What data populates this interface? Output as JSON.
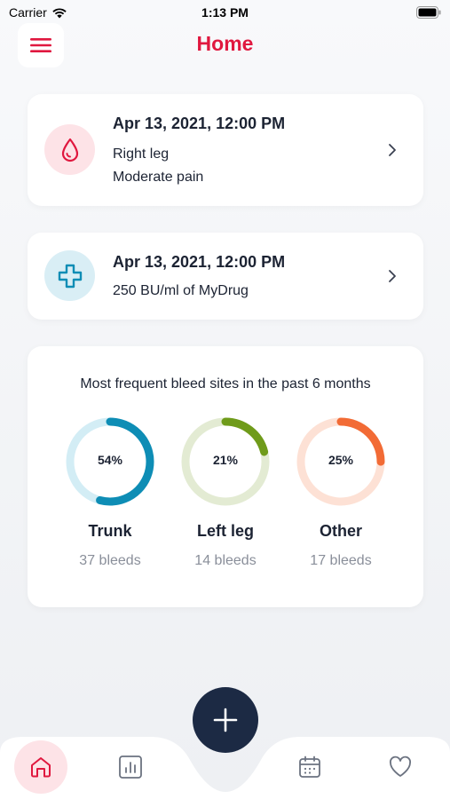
{
  "status_bar": {
    "carrier": "Carrier",
    "time": "1:13 PM"
  },
  "header": {
    "title": "Home",
    "menu_icon": "hamburger-menu-icon"
  },
  "entries": [
    {
      "type": "bleed",
      "icon": "blood-drop-icon",
      "date": "Apr 13, 2021, 12:00 PM",
      "lines": [
        "Right leg",
        "Moderate pain"
      ]
    },
    {
      "type": "treatment",
      "icon": "medical-cross-icon",
      "date": "Apr 13, 2021, 12:00 PM",
      "lines": [
        "250 BU/ml of MyDrug"
      ]
    }
  ],
  "stats": {
    "title": "Most frequent bleed sites in the past 6 months",
    "sites": [
      {
        "name": "Trunk",
        "percent_label": "54%",
        "percent": 54,
        "count_label": "37 bleeds",
        "color": "#0e8db5",
        "track": "#d3edf5"
      },
      {
        "name": "Left leg",
        "percent_label": "21%",
        "percent": 21,
        "count_label": "14 bleeds",
        "color": "#6f9b1a",
        "track": "#e3ebd3"
      },
      {
        "name": "Other",
        "percent_label": "25%",
        "percent": 25,
        "count_label": "17 bleeds",
        "color": "#f26b35",
        "track": "#fde1d5"
      }
    ]
  },
  "tab_bar": {
    "items": [
      "home-icon",
      "chart-icon",
      "calendar-icon",
      "heart-icon"
    ],
    "active": "home-icon",
    "fab_icon": "plus-icon"
  },
  "colors": {
    "accent": "#e0183f",
    "dark": "#1c2a44"
  }
}
